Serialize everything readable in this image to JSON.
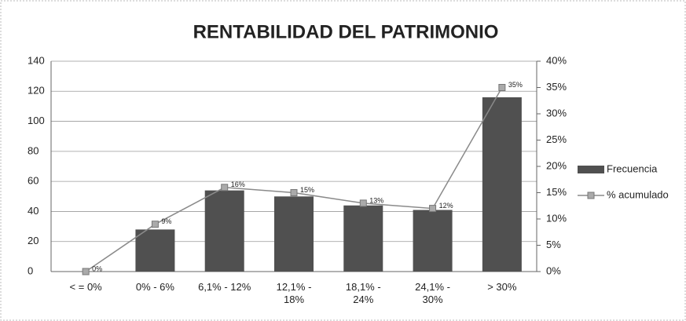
{
  "chart_data": {
    "type": "bar",
    "title": "RENTABILIDAD DEL PATRIMONIO",
    "categories": [
      "< = 0%",
      "0% - 6%",
      "6,1% - 12%",
      "12,1% - 18%",
      "18,1% - 24%",
      "24,1% - 30%",
      "> 30%"
    ],
    "series": [
      {
        "name": "Frecuencia",
        "color": "#505050",
        "type": "bar",
        "values": [
          0,
          28,
          54,
          50,
          44,
          41,
          116
        ]
      },
      {
        "name": "% acumulado",
        "color": "#8a8a8a",
        "type": "line",
        "axis": "y2",
        "values": [
          0,
          9,
          16,
          15,
          13,
          12,
          35
        ],
        "value_labels": [
          "0%",
          "9%",
          "16%",
          "15%",
          "13%",
          "12%",
          "35%"
        ]
      }
    ],
    "ylim": [
      0,
      140
    ],
    "yticks": [
      0,
      20,
      40,
      60,
      80,
      100,
      120,
      140
    ],
    "y2lim": [
      0,
      40
    ],
    "y2ticks": [
      {
        "value": 0,
        "label": "0%"
      },
      {
        "value": 5,
        "label": "5%"
      },
      {
        "value": 10,
        "label": "10%"
      },
      {
        "value": 15,
        "label": "15%"
      },
      {
        "value": 20,
        "label": "20%"
      },
      {
        "value": 25,
        "label": "25%"
      },
      {
        "value": 30,
        "label": "30%"
      },
      {
        "value": 35,
        "label": "35%"
      },
      {
        "value": 40,
        "label": "40%"
      }
    ],
    "grid": true,
    "legend": "right"
  }
}
